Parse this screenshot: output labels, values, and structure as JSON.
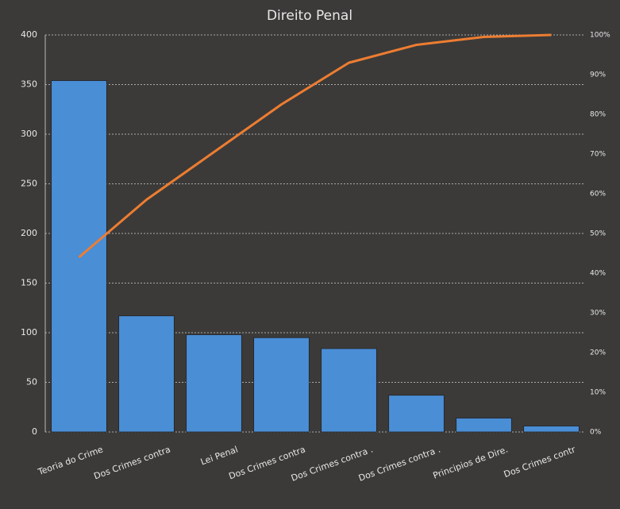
{
  "chart_data": {
    "type": "pareto",
    "title": "Direito Penal",
    "categories": [
      "Teoria do Crime",
      "Dos Crimes contra",
      "Lei Penal",
      "Dos Crimes contra",
      "Dos Crimes contra .",
      "Dos Crimes contra  .",
      "Principios de Dire.",
      "Dos Crimes contr"
    ],
    "series": [
      {
        "type": "bar",
        "color": "#4a8ed6",
        "values": [
          354,
          117,
          98,
          95,
          84,
          37,
          14,
          6
        ]
      },
      {
        "type": "line",
        "color": "#ed7d31",
        "axis": "y2",
        "values": [
          44,
          58.5,
          70.5,
          82.5,
          93,
          97.5,
          99.5,
          100
        ]
      }
    ],
    "ylim": [
      0,
      400
    ],
    "yticks": [
      0,
      50,
      100,
      150,
      200,
      250,
      300,
      350,
      400
    ],
    "y2lim": [
      0,
      100
    ],
    "y2ticks": [
      {
        "value": 0,
        "label": "0%"
      },
      {
        "value": 10,
        "label": "10%"
      },
      {
        "value": 20,
        "label": "20%"
      },
      {
        "value": 30,
        "label": "30%"
      },
      {
        "value": 40,
        "label": "40%"
      },
      {
        "value": 50,
        "label": "50%"
      },
      {
        "value": 60,
        "label": "60%"
      },
      {
        "value": 70,
        "label": "70%"
      },
      {
        "value": 80,
        "label": "80%"
      },
      {
        "value": 90,
        "label": "90%"
      },
      {
        "value": 100,
        "label": "100%"
      }
    ],
    "grid": true
  }
}
